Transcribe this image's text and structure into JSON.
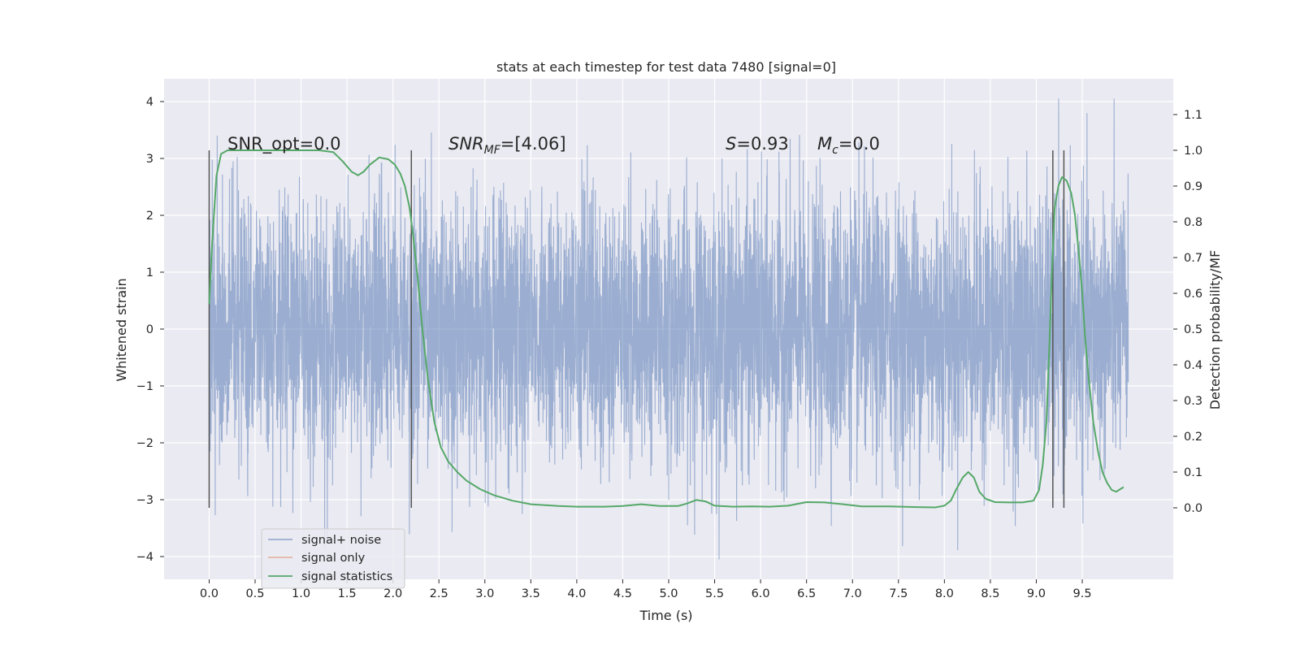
{
  "chart_data": {
    "type": "line",
    "title": "stats at each timestep for test data 7480 [signal=0]",
    "xlabel": "Time (s)",
    "ylabel": "Whitened strain",
    "y2label": "Detection probability/MF",
    "xlim": [
      -0.49,
      10.49
    ],
    "ylim": [
      -4.4,
      4.4
    ],
    "y2lim": [
      -0.2,
      1.2
    ],
    "x_ticks": [
      0.0,
      0.5,
      1.0,
      1.5,
      2.0,
      2.5,
      3.0,
      3.5,
      4.0,
      4.5,
      5.0,
      5.5,
      6.0,
      6.5,
      7.0,
      7.5,
      8.0,
      8.5,
      9.0,
      9.5
    ],
    "x_tick_labels": [
      "0.0",
      "0.5",
      "1.0",
      "1.5",
      "2.0",
      "2.5",
      "3.0",
      "3.5",
      "4.0",
      "4.5",
      "5.0",
      "5.5",
      "6.0",
      "6.5",
      "7.0",
      "7.5",
      "8.0",
      "8.5",
      "9.0",
      "9.5"
    ],
    "y_ticks": [
      4,
      3,
      2,
      1,
      0,
      -1,
      -2,
      -3,
      -4
    ],
    "y_tick_labels": [
      "4",
      "3",
      "2",
      "1",
      "0",
      "−1",
      "−2",
      "−3",
      "−4"
    ],
    "y2_ticks": [
      1.1,
      1.0,
      0.9,
      0.8,
      0.7,
      0.6,
      0.5,
      0.4,
      0.3,
      0.2,
      0.1,
      0.0
    ],
    "y2_tick_labels": [
      "1.1",
      "1.0",
      "0.9",
      "0.8",
      "0.7",
      "0.6",
      "0.5",
      "0.4",
      "0.3",
      "0.2",
      "0.1",
      "0.0"
    ],
    "grid": true,
    "legend_position": "lower-left",
    "legend": [
      "signal+ noise",
      "signal only",
      "signal statistics"
    ],
    "annotations": {
      "snr_opt": "SNR_opt=0.0",
      "snr_mf_italic": "SNR",
      "snr_mf_sub": "MF",
      "snr_mf_rest": "=[4.06]",
      "s_italic": "S",
      "s_rest": "=0.93",
      "mc_italic": "M",
      "mc_sub": "c",
      "mc_rest": "=0.0"
    },
    "vertical_markers_s": [
      0.0,
      2.2,
      9.18,
      9.3
    ],
    "vertical_marker_range": [
      0.0,
      1.0
    ],
    "series": [
      {
        "name": "signal+ noise",
        "color": "#4c72b0",
        "style": "dense noise trace",
        "x_range": [
          0.0,
          10.0
        ],
        "amplitude_envelope": [
          -4.05,
          4.05
        ]
      },
      {
        "name": "signal only",
        "color": "#dd8452",
        "x": [],
        "y": []
      },
      {
        "name": "signal statistics",
        "color": "#55a868",
        "axis": "right",
        "x": [
          0.0,
          0.03,
          0.08,
          0.13,
          0.2,
          0.3,
          0.5,
          0.8,
          1.0,
          1.2,
          1.35,
          1.45,
          1.55,
          1.62,
          1.68,
          1.75,
          1.85,
          1.95,
          2.02,
          2.08,
          2.13,
          2.18,
          2.22,
          2.27,
          2.32,
          2.38,
          2.45,
          2.52,
          2.6,
          2.7,
          2.8,
          2.95,
          3.1,
          3.3,
          3.5,
          3.8,
          4.0,
          4.3,
          4.5,
          4.7,
          4.9,
          5.1,
          5.2,
          5.3,
          5.4,
          5.5,
          5.7,
          5.9,
          6.1,
          6.3,
          6.5,
          6.7,
          6.9,
          7.1,
          7.4,
          7.7,
          7.9,
          8.0,
          8.07,
          8.13,
          8.2,
          8.26,
          8.32,
          8.38,
          8.45,
          8.55,
          8.7,
          8.85,
          8.97,
          9.03,
          9.07,
          9.11,
          9.14,
          9.17,
          9.2,
          9.24,
          9.28,
          9.33,
          9.38,
          9.42,
          9.46,
          9.5,
          9.53,
          9.57,
          9.62,
          9.67,
          9.72,
          9.77,
          9.82,
          9.87,
          9.9,
          9.95
        ],
        "y": [
          0.57,
          0.73,
          0.93,
          0.99,
          1.0,
          1.0,
          1.0,
          1.0,
          1.0,
          1.0,
          0.995,
          0.97,
          0.94,
          0.93,
          0.94,
          0.96,
          0.98,
          0.975,
          0.96,
          0.935,
          0.9,
          0.84,
          0.76,
          0.64,
          0.5,
          0.36,
          0.24,
          0.17,
          0.13,
          0.1,
          0.076,
          0.052,
          0.035,
          0.02,
          0.01,
          0.005,
          0.003,
          0.003,
          0.005,
          0.01,
          0.005,
          0.005,
          0.012,
          0.022,
          0.018,
          0.006,
          0.003,
          0.004,
          0.003,
          0.006,
          0.016,
          0.015,
          0.01,
          0.004,
          0.004,
          0.002,
          0.001,
          0.006,
          0.02,
          0.052,
          0.085,
          0.1,
          0.085,
          0.045,
          0.025,
          0.016,
          0.015,
          0.015,
          0.02,
          0.05,
          0.12,
          0.24,
          0.44,
          0.66,
          0.84,
          0.9,
          0.925,
          0.915,
          0.88,
          0.82,
          0.72,
          0.6,
          0.48,
          0.36,
          0.24,
          0.16,
          0.1,
          0.07,
          0.05,
          0.045,
          0.05,
          0.058
        ]
      }
    ]
  }
}
